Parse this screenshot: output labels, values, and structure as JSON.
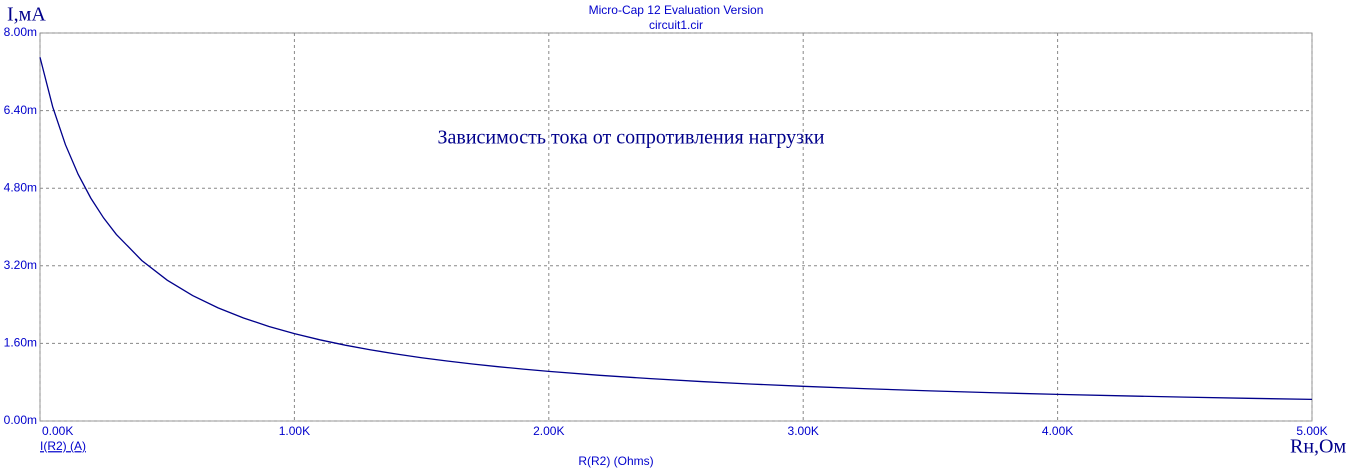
{
  "chart_data": {
    "type": "line",
    "title": "Micro-Cap 12 Evaluation Version",
    "subtitle": "circuit1.cir",
    "y_axis_label": "I,мА",
    "x_axis_label": "Rн,Ом",
    "x_variable": "R(R2) (Ohms)",
    "annotation": "Зависимость тока от сопротивления нагрузки",
    "x": [
      0,
      50,
      100,
      150,
      200,
      250,
      300,
      400,
      500,
      600,
      700,
      800,
      900,
      1000,
      1100,
      1200,
      1300,
      1400,
      1500,
      1600,
      1700,
      1800,
      1900,
      2000,
      2200,
      2400,
      2600,
      2800,
      3000,
      3250,
      3500,
      3750,
      4000,
      4250,
      4500,
      4750,
      5000
    ],
    "series": [
      {
        "name": "I(R2) (A)",
        "color": "#00008b",
        "values": [
          0.0075,
          0.006475,
          0.005697,
          0.005086,
          0.004593,
          0.004187,
          0.003847,
          0.00331,
          0.002904,
          0.002587,
          0.002333,
          0.002124,
          0.001949,
          0.001801,
          0.001674,
          0.001563,
          0.001467,
          0.001381,
          0.001305,
          0.001237,
          0.001176,
          0.00112,
          0.00107,
          0.001023,
          0.000942,
          0.000873,
          0.000813,
          0.000761,
          0.000715,
          0.000665,
          0.000621,
          0.000583,
          0.000549,
          0.000519,
          0.000492,
          0.000468,
          0.000446
        ]
      }
    ],
    "xlim": [
      0,
      5000
    ],
    "ylim": [
      0,
      0.008
    ],
    "xticks": [
      {
        "value": 0,
        "label": "0.00K"
      },
      {
        "value": 1000,
        "label": "1.00K"
      },
      {
        "value": 2000,
        "label": "2.00K"
      },
      {
        "value": 3000,
        "label": "3.00K"
      },
      {
        "value": 4000,
        "label": "4.00K"
      },
      {
        "value": 5000,
        "label": "5.00K"
      }
    ],
    "yticks": [
      {
        "value": 0,
        "label": "0.00m"
      },
      {
        "value": 0.0016,
        "label": "1.60m"
      },
      {
        "value": 0.0032,
        "label": "3.20m"
      },
      {
        "value": 0.0048,
        "label": "4.80m"
      },
      {
        "value": 0.0064,
        "label": "6.40m"
      },
      {
        "value": 0.008,
        "label": "8.00m"
      }
    ],
    "grid": true
  }
}
